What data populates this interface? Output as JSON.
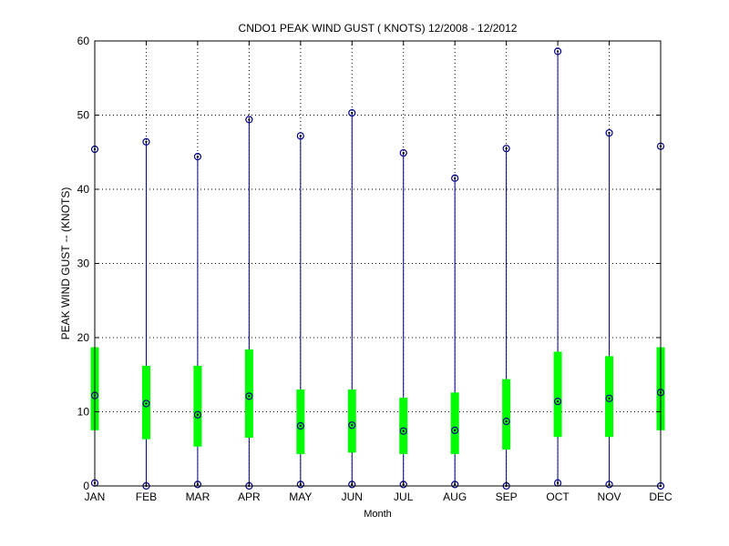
{
  "chart_data": {
    "type": "boxplot",
    "title": "CNDO1  PEAK WIND GUST ( KNOTS) 12/2008 - 12/2012",
    "xlabel": "Month",
    "ylabel": "PEAK WIND GUST -- (KNOTS)",
    "ylim": [
      0,
      60
    ],
    "yticks": [
      0,
      10,
      20,
      30,
      40,
      50,
      60
    ],
    "grid": true,
    "categories": [
      "JAN",
      "FEB",
      "MAR",
      "APR",
      "MAY",
      "JUN",
      "JUL",
      "AUG",
      "SEP",
      "OCT",
      "NOV",
      "DEC"
    ],
    "min": [
      0.4,
      0.0,
      0.2,
      0.0,
      0.2,
      0.2,
      0.2,
      0.2,
      0.0,
      0.4,
      0.2,
      0.0
    ],
    "q1": [
      7.5,
      6.3,
      5.3,
      6.5,
      4.3,
      4.5,
      4.3,
      4.3,
      4.9,
      6.6,
      6.6,
      7.5
    ],
    "median": [
      12.2,
      11.1,
      9.6,
      12.1,
      8.1,
      8.2,
      7.4,
      7.5,
      8.7,
      11.4,
      11.8,
      12.6
    ],
    "q3": [
      18.7,
      16.2,
      16.2,
      18.4,
      13.0,
      13.0,
      11.9,
      12.6,
      14.4,
      18.1,
      17.5,
      18.7
    ],
    "max": [
      45.4,
      46.4,
      44.4,
      49.4,
      47.2,
      50.3,
      44.9,
      41.5,
      45.5,
      58.6,
      47.6,
      45.8
    ],
    "colors": {
      "whisker": "#00008b",
      "box": "#00ff00",
      "marker": "#000000",
      "grid": "#000000"
    }
  }
}
